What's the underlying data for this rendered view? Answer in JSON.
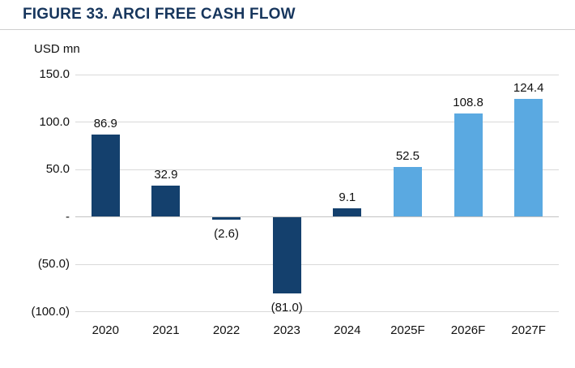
{
  "title": "FIGURE 33. ARCI FREE CASH FLOW",
  "units_label": "USD mn",
  "colors": {
    "title": "#17365D",
    "title_rule": "#CFCFCF",
    "bar_actual": "#14406D",
    "bar_forecast": "#5AA9E1",
    "gridline": "#D9D9D9",
    "zero_line": "#C2C2C2",
    "text": "#111111"
  },
  "chart_data": {
    "type": "bar",
    "title": "FIGURE 33. ARCI FREE CASH FLOW",
    "ylabel": "USD mn",
    "categories": [
      "2020",
      "2021",
      "2022",
      "2023",
      "2024",
      "2025F",
      "2026F",
      "2027F"
    ],
    "values": [
      86.9,
      32.9,
      -2.6,
      -81.0,
      9.1,
      52.5,
      108.8,
      124.4
    ],
    "labels": [
      "86.9",
      "32.9",
      "(2.6)",
      "(81.0)",
      "9.1",
      "52.5",
      "108.8",
      "124.4"
    ],
    "series_type": [
      "actual",
      "actual",
      "actual",
      "actual",
      "actual",
      "forecast",
      "forecast",
      "forecast"
    ],
    "ylim": [
      -100,
      150
    ],
    "yticks": [
      150,
      100,
      50,
      0,
      -50,
      -100
    ],
    "ytick_labels": [
      "150.0",
      "100.0",
      "50.0",
      "-",
      "(50.0)",
      "(100.0)"
    ],
    "grid": true,
    "legend": "none"
  }
}
